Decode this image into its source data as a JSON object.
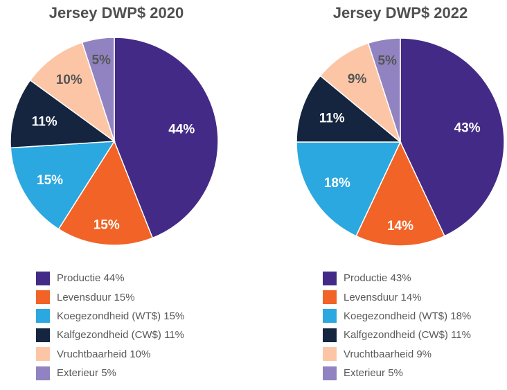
{
  "colors": {
    "productie": "#432a86",
    "levensduur": "#f16326",
    "koegezondheid": "#2ba8df",
    "kalfgezondheid": "#15243f",
    "vruchtbaarheid": "#fcc6a6",
    "exterieur": "#9183c1",
    "label_light": "#ffffff",
    "label_dark": "#555555"
  },
  "chart_data": [
    {
      "type": "pie",
      "title": "Jersey DWP$ 2020",
      "legend_position": "bottom",
      "slices": [
        {
          "key": "productie",
          "legend": "Productie 44%",
          "label": "44%",
          "value": 44
        },
        {
          "key": "levensduur",
          "legend": "Levensduur 15%",
          "label": "15%",
          "value": 15
        },
        {
          "key": "koegezondheid",
          "legend": "Koegezondheid (WT$) 15%",
          "label": "15%",
          "value": 15
        },
        {
          "key": "kalfgezondheid",
          "legend": "Kalfgezondheid (CW$) 11%",
          "label": "11%",
          "value": 11
        },
        {
          "key": "vruchtbaarheid",
          "legend": "Vruchtbaarheid 10%",
          "label": "10%",
          "value": 10
        },
        {
          "key": "exterieur",
          "legend": "Exterieur 5%",
          "label": "5%",
          "value": 5
        }
      ]
    },
    {
      "type": "pie",
      "title": "Jersey DWP$ 2022",
      "legend_position": "bottom",
      "slices": [
        {
          "key": "productie",
          "legend": "Productie 43%",
          "label": "43%",
          "value": 43
        },
        {
          "key": "levensduur",
          "legend": "Levensduur 14%",
          "label": "14%",
          "value": 14
        },
        {
          "key": "koegezondheid",
          "legend": "Koegezondheid (WT$) 18%",
          "label": "18%",
          "value": 18
        },
        {
          "key": "kalfgezondheid",
          "legend": "Kalfgezondheid (CW$) 11%",
          "label": "11%",
          "value": 11
        },
        {
          "key": "vruchtbaarheid",
          "legend": "Vruchtbaarheid 9%",
          "label": "9%",
          "value": 9
        },
        {
          "key": "exterieur",
          "legend": "Exterieur 5%",
          "label": "5%",
          "value": 5
        }
      ]
    }
  ]
}
